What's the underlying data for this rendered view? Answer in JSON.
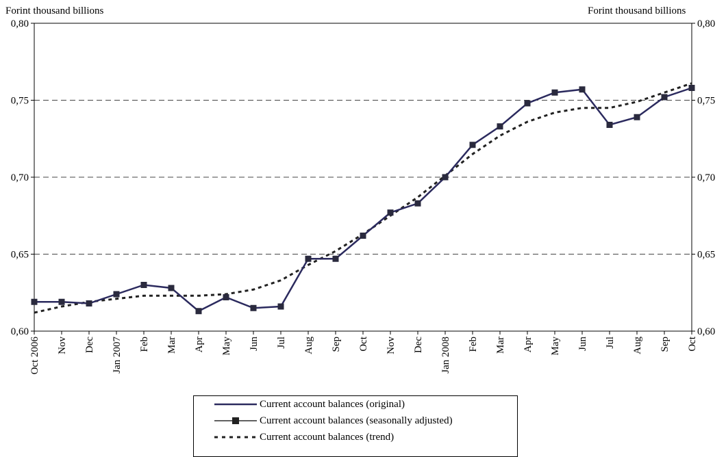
{
  "chart_data": {
    "type": "line",
    "y_unit_left": "Forint thousand billions",
    "y_unit_right": "Forint thousand billions",
    "ylim": [
      0.6,
      0.8
    ],
    "yticks": [
      "0,60",
      "0,65",
      "0,70",
      "0,75",
      "0,80"
    ],
    "ytick_values": [
      0.6,
      0.65,
      0.7,
      0.75,
      0.8
    ],
    "grid": "horizontal dashed",
    "categories": [
      "Oct 2006",
      "Nov",
      "Dec",
      "Jan 2007",
      "Feb",
      "Mar",
      "Apr",
      "May",
      "Jun",
      "Jul",
      "Aug",
      "Sep",
      "Oct",
      "Nov",
      "Dec",
      "Jan 2008",
      "Feb",
      "Mar",
      "Apr",
      "May",
      "Jun",
      "Jul",
      "Aug",
      "Sep",
      "Oct"
    ],
    "series": [
      {
        "name": "Current account balances (original)",
        "style": "solid",
        "color": "#2b2a5e",
        "values": [
          0.619,
          0.619,
          0.618,
          0.624,
          0.63,
          0.628,
          0.613,
          0.622,
          0.615,
          0.616,
          0.647,
          0.647,
          0.662,
          0.677,
          0.683,
          0.7,
          0.721,
          0.733,
          0.748,
          0.755,
          0.757,
          0.734,
          0.739,
          0.752,
          0.758
        ]
      },
      {
        "name": "Current account balances (seasonally adjusted)",
        "style": "solid-square-markers",
        "color": "#2b2a5e",
        "values": [
          0.619,
          0.619,
          0.618,
          0.624,
          0.63,
          0.628,
          0.613,
          0.622,
          0.615,
          0.616,
          0.647,
          0.647,
          0.662,
          0.677,
          0.683,
          0.7,
          0.721,
          0.733,
          0.748,
          0.755,
          0.757,
          0.734,
          0.739,
          0.752,
          0.758
        ]
      },
      {
        "name": "Current account balances (trend)",
        "style": "dotted",
        "color": "#222222",
        "values": [
          0.612,
          0.616,
          0.619,
          0.621,
          0.623,
          0.623,
          0.623,
          0.624,
          0.627,
          0.633,
          0.643,
          0.652,
          0.663,
          0.675,
          0.687,
          0.701,
          0.715,
          0.727,
          0.736,
          0.742,
          0.745,
          0.745,
          0.749,
          0.755,
          0.761
        ]
      }
    ],
    "legend_position": "bottom-center"
  }
}
